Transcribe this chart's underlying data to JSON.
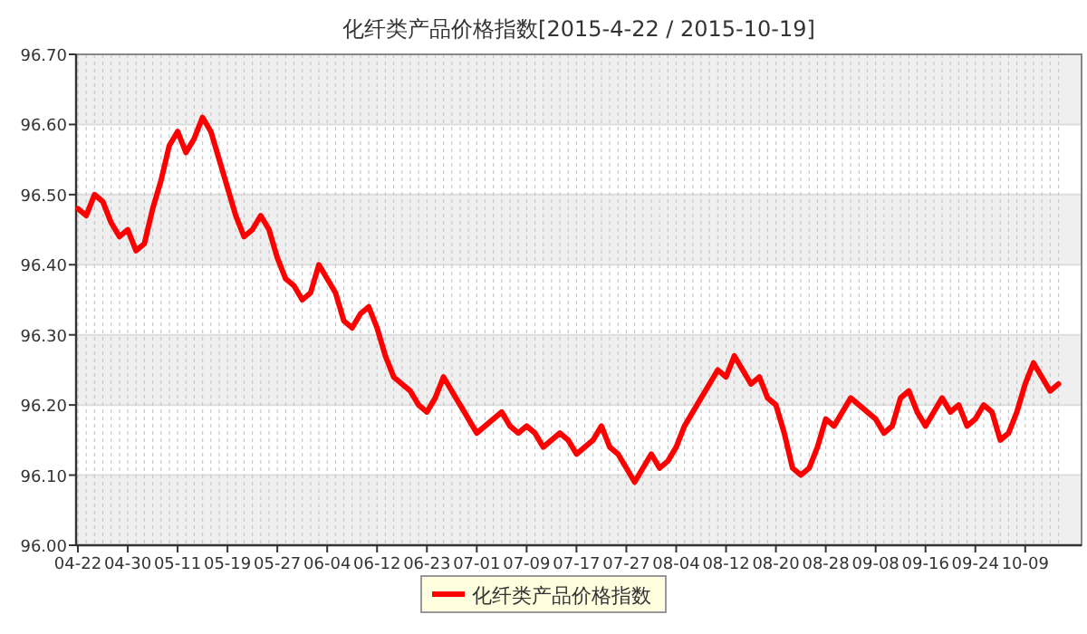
{
  "chart_data": {
    "type": "line",
    "title": "化纤类产品价格指数[2015-4-22 / 2015-10-19]",
    "categories": [
      "04-22",
      null,
      null,
      null,
      null,
      null,
      "04-30",
      null,
      null,
      null,
      null,
      null,
      "05-11",
      null,
      null,
      null,
      null,
      null,
      "05-19",
      null,
      null,
      null,
      null,
      null,
      "05-27",
      null,
      null,
      null,
      null,
      null,
      "06-04",
      null,
      null,
      null,
      null,
      null,
      "06-12",
      null,
      null,
      null,
      null,
      null,
      "06-23",
      null,
      null,
      null,
      null,
      null,
      "07-01",
      null,
      null,
      null,
      null,
      null,
      "07-09",
      null,
      null,
      null,
      null,
      null,
      "07-17",
      null,
      null,
      null,
      null,
      null,
      "07-27",
      null,
      null,
      null,
      null,
      null,
      "08-04",
      null,
      null,
      null,
      null,
      null,
      "08-12",
      null,
      null,
      null,
      null,
      null,
      "08-20",
      null,
      null,
      null,
      null,
      null,
      "08-28",
      null,
      null,
      null,
      null,
      null,
      "09-08",
      null,
      null,
      null,
      null,
      null,
      "09-16",
      null,
      null,
      null,
      null,
      null,
      "09-24",
      null,
      null,
      null,
      null,
      null,
      "10-09",
      null,
      null,
      null,
      null
    ],
    "series": [
      {
        "name": "化纤类产品价格指数",
        "color": "#ff0000",
        "values": [
          96.48,
          96.47,
          96.5,
          96.49,
          96.46,
          96.44,
          96.45,
          96.42,
          96.43,
          96.48,
          96.52,
          96.57,
          96.59,
          96.56,
          96.58,
          96.61,
          96.59,
          96.55,
          96.51,
          96.47,
          96.44,
          96.45,
          96.47,
          96.45,
          96.41,
          96.38,
          96.37,
          96.35,
          96.36,
          96.4,
          96.38,
          96.36,
          96.32,
          96.31,
          96.33,
          96.34,
          96.31,
          96.27,
          96.24,
          96.23,
          96.22,
          96.2,
          96.19,
          96.21,
          96.24,
          96.22,
          96.2,
          96.18,
          96.16,
          96.17,
          96.18,
          96.19,
          96.17,
          96.16,
          96.17,
          96.16,
          96.14,
          96.15,
          96.16,
          96.15,
          96.13,
          96.14,
          96.15,
          96.17,
          96.14,
          96.13,
          96.11,
          96.09,
          96.11,
          96.13,
          96.11,
          96.12,
          96.14,
          96.17,
          96.19,
          96.21,
          96.23,
          96.25,
          96.24,
          96.27,
          96.25,
          96.23,
          96.24,
          96.21,
          96.2,
          96.16,
          96.11,
          96.1,
          96.11,
          96.14,
          96.18,
          96.17,
          96.19,
          96.21,
          96.2,
          96.19,
          96.18,
          96.16,
          96.17,
          96.21,
          96.22,
          96.19,
          96.17,
          96.19,
          96.21,
          96.19,
          96.2,
          96.17,
          96.18,
          96.2,
          96.19,
          96.15,
          96.16,
          96.19,
          96.23,
          96.26,
          96.24,
          96.22,
          96.23
        ]
      }
    ],
    "ylim": [
      96.0,
      96.7
    ],
    "yticks": [
      {
        "value": 96.0,
        "label": "96.00"
      },
      {
        "value": 96.1,
        "label": "96.10"
      },
      {
        "value": 96.2,
        "label": "96.20"
      },
      {
        "value": 96.3,
        "label": "96.30"
      },
      {
        "value": 96.4,
        "label": "96.40"
      },
      {
        "value": 96.5,
        "label": "96.50"
      },
      {
        "value": 96.6,
        "label": "96.60"
      },
      {
        "value": 96.7,
        "label": "96.70"
      }
    ],
    "grid": true,
    "legend": "bottom",
    "marker": "none",
    "line_style": "solid"
  }
}
